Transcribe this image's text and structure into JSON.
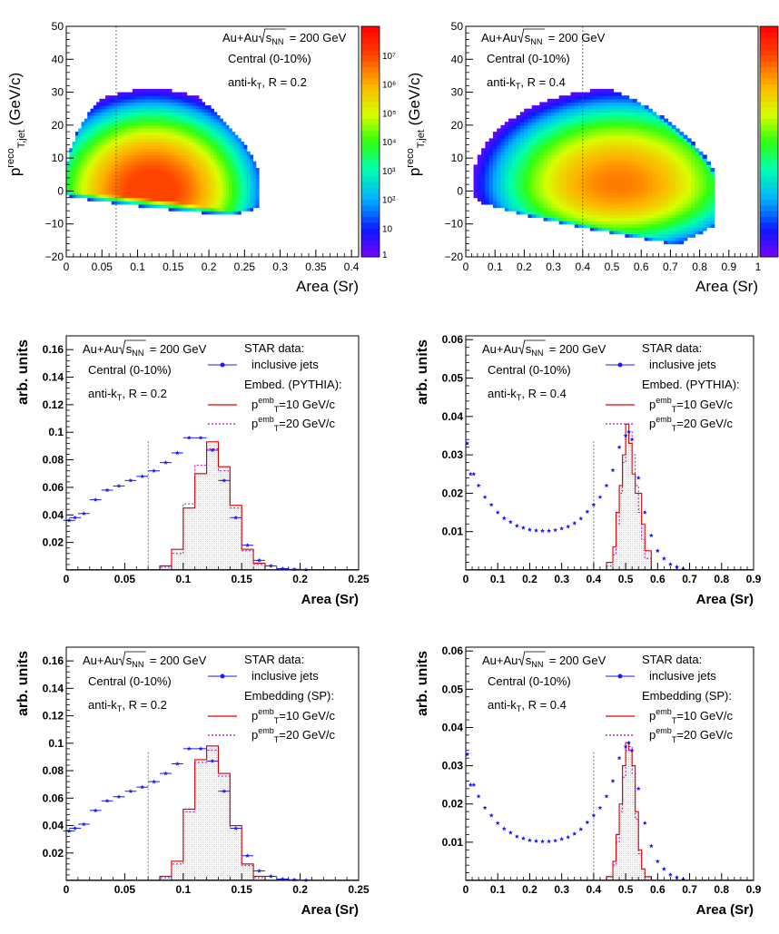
{
  "panels_2d": [
    {
      "id": "top-left",
      "ylabel_main": "p",
      "ylabel_sup": "reco",
      "ylabel_sub": "T,jet",
      "ylabel_unit": " (GeV/c)",
      "xlabel": "Area (Sr)",
      "text_collision": "Au+Au",
      "text_energy": "= 200 GeV",
      "text_sqrt": "s",
      "text_sqrt_sub": "NN",
      "text_centrality": "Central (0-10%)",
      "text_algo": "anti-k",
      "text_algo_sub": "T",
      "text_radius": ", R = 0.2",
      "xticks": [
        "0",
        "0.05",
        "0.1",
        "0.15",
        "0.2",
        "0.25",
        "0.3",
        "0.35",
        "0.4"
      ],
      "yticks": [
        "50",
        "40",
        "30",
        "20",
        "10",
        "0",
        "−10",
        "−20"
      ],
      "zticks": [
        "10⁷",
        "10⁶",
        "10⁵",
        "10⁴",
        "10³",
        "10²",
        "10",
        "1"
      ],
      "cut_label": "0.07"
    },
    {
      "id": "top-right",
      "ylabel_main": "p",
      "ylabel_sup": "reco",
      "ylabel_sub": "T,jet",
      "ylabel_unit": " (GeV/c)",
      "xlabel": "Area (Sr)",
      "text_collision": "Au+Au",
      "text_energy": "= 200 GeV",
      "text_sqrt": "s",
      "text_sqrt_sub": "NN",
      "text_centrality": "Central (0-10%)",
      "text_algo": "anti-k",
      "text_algo_sub": "T",
      "text_radius": ", R = 0.4",
      "xticks": [
        "0",
        "0.1",
        "0.2",
        "0.3",
        "0.4",
        "0.5",
        "0.6",
        "0.7",
        "0.8",
        "0.9",
        "1"
      ],
      "yticks": [
        "50",
        "40",
        "30",
        "20",
        "10",
        "0",
        "−10",
        "−20"
      ],
      "cut_label": "0.4"
    }
  ],
  "panels_1d": [
    {
      "id": "mid-left",
      "ylabel": "arb. units",
      "xlabel": "Area (Sr)",
      "text_collision": "Au+Au",
      "text_energy": "= 200 GeV",
      "text_sqrt": "s",
      "text_sqrt_sub": "NN",
      "text_centrality": "Central (0-10%)",
      "text_algo": "anti-k",
      "text_algo_sub": "T",
      "text_radius": ", R = 0.2",
      "legend_title": "STAR data:",
      "legend_inclusive": "inclusive jets",
      "legend_embed": "Embed. (PYTHIA):",
      "legend_p10": "=10 GeV/c",
      "legend_p20": "=20 GeV/c",
      "legend_p_main": "p",
      "legend_p_sup": "emb",
      "legend_p_sub": "T",
      "xticks": [
        "0",
        "0.05",
        "0.1",
        "0.15",
        "0.2",
        "0.25"
      ],
      "yticks": [
        "0.16",
        "0.14",
        "0.12",
        "0.1",
        "0.08",
        "0.06",
        "0.04",
        "0.02"
      ]
    },
    {
      "id": "mid-right",
      "ylabel": "arb. units",
      "xlabel": "Area (Sr)",
      "text_collision": "Au+Au",
      "text_energy": "= 200 GeV",
      "text_sqrt": "s",
      "text_sqrt_sub": "NN",
      "text_centrality": "Central (0-10%)",
      "text_algo": "anti-k",
      "text_algo_sub": "T",
      "text_radius": ", R = 0.4",
      "legend_title": "STAR data:",
      "legend_inclusive": "inclusive jets",
      "legend_embed": "Embed. (PYTHIA):",
      "legend_p10": "=10 GeV/c",
      "legend_p20": "=20 GeV/c",
      "legend_p_main": "p",
      "legend_p_sup": "emb",
      "legend_p_sub": "T",
      "xticks": [
        "0",
        "0.1",
        "0.2",
        "0.3",
        "0.4",
        "0.5",
        "0.6",
        "0.7",
        "0.8",
        "0.9"
      ],
      "yticks": [
        "0.06",
        "0.05",
        "0.04",
        "0.03",
        "0.02",
        "0.01"
      ]
    },
    {
      "id": "bot-left",
      "ylabel": "arb. units",
      "xlabel": "Area (Sr)",
      "text_collision": "Au+Au",
      "text_energy": "= 200 GeV",
      "text_sqrt": "s",
      "text_sqrt_sub": "NN",
      "text_centrality": "Central (0-10%)",
      "text_algo": "anti-k",
      "text_algo_sub": "T",
      "text_radius": ", R = 0.2",
      "legend_title": "STAR data:",
      "legend_inclusive": "inclusive jets",
      "legend_embed": "Embedding (SP):",
      "legend_p10": "=10 GeV/c",
      "legend_p20": "=20 GeV/c",
      "legend_p_main": "p",
      "legend_p_sup": "emb",
      "legend_p_sub": "T",
      "xticks": [
        "0",
        "0.05",
        "0.1",
        "0.15",
        "0.2",
        "0.25"
      ],
      "yticks": [
        "0.16",
        "0.14",
        "0.12",
        "0.1",
        "0.08",
        "0.06",
        "0.04",
        "0.02"
      ]
    },
    {
      "id": "bot-right",
      "ylabel": "arb. units",
      "xlabel": "Area (Sr)",
      "text_collision": "Au+Au",
      "text_energy": "= 200 GeV",
      "text_sqrt": "s",
      "text_sqrt_sub": "NN",
      "text_centrality": "Central (0-10%)",
      "text_algo": "anti-k",
      "text_algo_sub": "T",
      "text_radius": ", R = 0.4",
      "legend_title": "STAR data:",
      "legend_inclusive": "inclusive jets",
      "legend_embed": "Embedding (SP):",
      "legend_p10": "=10 GeV/c",
      "legend_p20": "=20 GeV/c",
      "legend_p_main": "p",
      "legend_p_sup": "emb",
      "legend_p_sub": "T",
      "xticks": [
        "0",
        "0.1",
        "0.2",
        "0.3",
        "0.4",
        "0.5",
        "0.6",
        "0.7",
        "0.8",
        "0.9"
      ],
      "yticks": [
        "0.06",
        "0.05",
        "0.04",
        "0.03",
        "0.02",
        "0.01"
      ]
    }
  ],
  "colors": {
    "inclusive": "#1a1aff",
    "p10": "#e00000",
    "p20": "#c000c0",
    "axis": "#000000"
  },
  "chart_data": [
    {
      "type": "heatmap",
      "panel": "top-left",
      "xlabel": "Area (Sr)",
      "ylabel": "p_T,jet^reco (GeV/c)",
      "xlim": [
        0,
        0.41
      ],
      "ylim": [
        -20,
        50
      ],
      "zlim_log10": [
        0,
        8
      ],
      "zscale": "log",
      "cut_x": 0.07,
      "blob": {
        "x_lo": 0.0,
        "x_hi": 0.27,
        "peak_x": 0.12,
        "peak_y": 0,
        "y_max": 34,
        "y_min": -8,
        "peak_log10z": 7.3
      }
    },
    {
      "type": "heatmap",
      "panel": "top-right",
      "xlabel": "Area (Sr)",
      "ylabel": "p_T,jet^reco (GeV/c)",
      "xlim": [
        0,
        1.0
      ],
      "ylim": [
        -20,
        50
      ],
      "zlim_log10": [
        0,
        8
      ],
      "zscale": "log",
      "cut_x": 0.4,
      "blob": {
        "x_lo": 0.0,
        "x_hi": 0.85,
        "peak_x": 0.52,
        "peak_y": 2,
        "y_max": 33,
        "y_min": -18,
        "peak_log10z": 6.5
      }
    },
    {
      "type": "line",
      "panel": "mid-left",
      "xlim": [
        0,
        0.25
      ],
      "ylim": [
        0,
        0.17
      ],
      "cut_x": 0.07,
      "series": [
        {
          "name": "inclusive jets",
          "style": "markers",
          "x": [
            0.0025,
            0.0075,
            0.015,
            0.025,
            0.035,
            0.045,
            0.055,
            0.065,
            0.075,
            0.085,
            0.095,
            0.105,
            0.115,
            0.125,
            0.135,
            0.145,
            0.155,
            0.165,
            0.175,
            0.185,
            0.195,
            0.205
          ],
          "y": [
            0.036,
            0.038,
            0.041,
            0.051,
            0.058,
            0.061,
            0.065,
            0.068,
            0.072,
            0.078,
            0.085,
            0.096,
            0.096,
            0.087,
            0.065,
            0.038,
            0.018,
            0.007,
            0.003,
            0.001,
            0.0005,
            0.0002
          ]
        },
        {
          "name": "p_T^emb=10 GeV/c",
          "style": "step",
          "edges": [
            0.08,
            0.09,
            0.1,
            0.11,
            0.12,
            0.13,
            0.14,
            0.15,
            0.16,
            0.17
          ],
          "y": [
            0.003,
            0.015,
            0.045,
            0.07,
            0.093,
            0.075,
            0.047,
            0.015,
            0.005
          ]
        },
        {
          "name": "p_T^emb=20 GeV/c",
          "style": "step-dotted",
          "edges": [
            0.08,
            0.09,
            0.1,
            0.11,
            0.12,
            0.13,
            0.14,
            0.15,
            0.16,
            0.17
          ],
          "y": [
            0.002,
            0.012,
            0.048,
            0.076,
            0.088,
            0.072,
            0.045,
            0.014,
            0.004
          ]
        }
      ]
    },
    {
      "type": "line",
      "panel": "mid-right",
      "xlim": [
        0,
        0.9
      ],
      "ylim": [
        0,
        0.061
      ],
      "cut_x": 0.4,
      "series": [
        {
          "name": "inclusive jets",
          "style": "markers",
          "x": [
            0.005,
            0.015,
            0.025,
            0.04,
            0.06,
            0.08,
            0.1,
            0.12,
            0.14,
            0.16,
            0.18,
            0.2,
            0.22,
            0.24,
            0.26,
            0.28,
            0.3,
            0.32,
            0.34,
            0.36,
            0.38,
            0.4,
            0.42,
            0.44,
            0.46,
            0.48,
            0.5,
            0.51,
            0.52,
            0.54,
            0.56,
            0.58,
            0.6,
            0.62,
            0.64,
            0.66,
            0.68
          ],
          "y": [
            0.033,
            0.025,
            0.025,
            0.022,
            0.019,
            0.017,
            0.015,
            0.0135,
            0.0125,
            0.0115,
            0.011,
            0.0105,
            0.0103,
            0.0102,
            0.0102,
            0.0104,
            0.0108,
            0.0113,
            0.0122,
            0.0134,
            0.0152,
            0.017,
            0.019,
            0.022,
            0.026,
            0.032,
            0.035,
            0.036,
            0.034,
            0.024,
            0.015,
            0.009,
            0.005,
            0.003,
            0.0015,
            0.0008,
            0.0003
          ]
        },
        {
          "name": "p_T^emb=10 GeV/c",
          "style": "step",
          "edges": [
            0.44,
            0.46,
            0.47,
            0.48,
            0.49,
            0.5,
            0.51,
            0.52,
            0.53,
            0.54,
            0.55,
            0.56,
            0.58
          ],
          "y": [
            0.002,
            0.006,
            0.015,
            0.022,
            0.03,
            0.038,
            0.033,
            0.025,
            0.02,
            0.02,
            0.012,
            0.005
          ]
        },
        {
          "name": "p_T^emb=20 GeV/c",
          "style": "step-dotted",
          "edges": [
            0.44,
            0.46,
            0.47,
            0.48,
            0.49,
            0.5,
            0.51,
            0.52,
            0.53,
            0.54,
            0.55,
            0.56,
            0.58
          ],
          "y": [
            0.001,
            0.004,
            0.012,
            0.02,
            0.028,
            0.034,
            0.036,
            0.03,
            0.022,
            0.015,
            0.008,
            0.003
          ]
        }
      ]
    },
    {
      "type": "line",
      "panel": "bot-left",
      "xlim": [
        0,
        0.25
      ],
      "ylim": [
        0,
        0.17
      ],
      "cut_x": 0.07,
      "series": [
        {
          "name": "inclusive jets",
          "style": "markers",
          "x": [
            0.0025,
            0.0075,
            0.015,
            0.025,
            0.035,
            0.045,
            0.055,
            0.065,
            0.075,
            0.085,
            0.095,
            0.105,
            0.115,
            0.125,
            0.135,
            0.145,
            0.155,
            0.165,
            0.175,
            0.185,
            0.195,
            0.205
          ],
          "y": [
            0.036,
            0.038,
            0.041,
            0.051,
            0.058,
            0.061,
            0.065,
            0.068,
            0.072,
            0.078,
            0.085,
            0.096,
            0.096,
            0.087,
            0.065,
            0.038,
            0.018,
            0.007,
            0.003,
            0.001,
            0.0005,
            0.0002
          ]
        },
        {
          "name": "p_T^emb=10 GeV/c",
          "style": "step",
          "edges": [
            0.08,
            0.09,
            0.1,
            0.11,
            0.12,
            0.13,
            0.14,
            0.15,
            0.16,
            0.17
          ],
          "y": [
            0.003,
            0.014,
            0.052,
            0.088,
            0.098,
            0.078,
            0.04,
            0.012,
            0.003
          ]
        },
        {
          "name": "p_T^emb=20 GeV/c",
          "style": "step-dotted",
          "edges": [
            0.08,
            0.09,
            0.1,
            0.11,
            0.12,
            0.13,
            0.14,
            0.15,
            0.16,
            0.17
          ],
          "y": [
            0.002,
            0.012,
            0.05,
            0.086,
            0.095,
            0.076,
            0.038,
            0.011,
            0.002
          ]
        }
      ]
    },
    {
      "type": "line",
      "panel": "bot-right",
      "xlim": [
        0,
        0.9
      ],
      "ylim": [
        0,
        0.061
      ],
      "cut_x": 0.4,
      "series": [
        {
          "name": "inclusive jets",
          "style": "markers",
          "x": [
            0.005,
            0.015,
            0.025,
            0.04,
            0.06,
            0.08,
            0.1,
            0.12,
            0.14,
            0.16,
            0.18,
            0.2,
            0.22,
            0.24,
            0.26,
            0.28,
            0.3,
            0.32,
            0.34,
            0.36,
            0.38,
            0.4,
            0.42,
            0.44,
            0.46,
            0.48,
            0.5,
            0.51,
            0.52,
            0.54,
            0.56,
            0.58,
            0.6,
            0.62,
            0.64,
            0.66,
            0.68
          ],
          "y": [
            0.033,
            0.025,
            0.025,
            0.022,
            0.019,
            0.017,
            0.015,
            0.0135,
            0.0125,
            0.0115,
            0.011,
            0.0105,
            0.0103,
            0.0102,
            0.0102,
            0.0104,
            0.0108,
            0.0113,
            0.0122,
            0.0134,
            0.0152,
            0.017,
            0.019,
            0.022,
            0.026,
            0.032,
            0.035,
            0.036,
            0.034,
            0.024,
            0.015,
            0.009,
            0.005,
            0.003,
            0.0015,
            0.0008,
            0.0003
          ]
        },
        {
          "name": "p_T^emb=10 GeV/c",
          "style": "step",
          "edges": [
            0.44,
            0.46,
            0.47,
            0.48,
            0.49,
            0.5,
            0.51,
            0.52,
            0.53,
            0.54,
            0.55,
            0.56,
            0.58
          ],
          "y": [
            0.001,
            0.005,
            0.012,
            0.02,
            0.03,
            0.036,
            0.034,
            0.03,
            0.018,
            0.008,
            0.003,
            0.001
          ]
        },
        {
          "name": "p_T^emb=20 GeV/c",
          "style": "step-dotted",
          "edges": [
            0.44,
            0.46,
            0.47,
            0.48,
            0.49,
            0.5,
            0.51,
            0.52,
            0.53,
            0.54,
            0.55,
            0.56,
            0.58
          ],
          "y": [
            0.001,
            0.004,
            0.01,
            0.018,
            0.027,
            0.034,
            0.035,
            0.028,
            0.016,
            0.007,
            0.003,
            0.001
          ]
        }
      ]
    }
  ]
}
